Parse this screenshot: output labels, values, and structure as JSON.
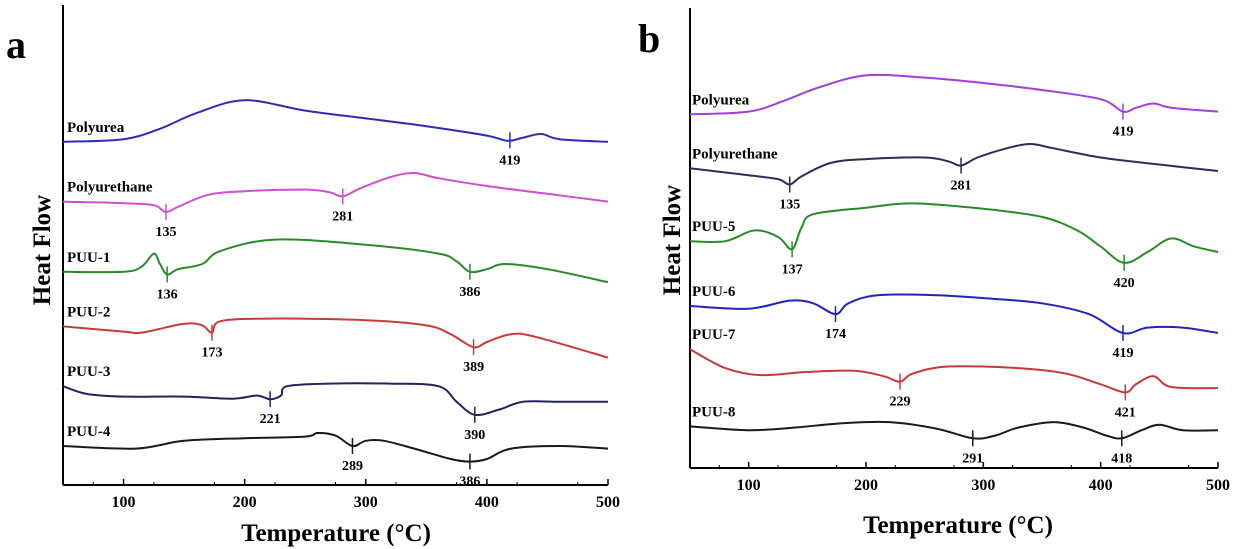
{
  "figure": {
    "panels": [
      {
        "letter": "a",
        "xlabel": "Temperature (°C)",
        "ylabel": "Heat Flow"
      },
      {
        "letter": "b",
        "xlabel": "Temperature (°C)",
        "ylabel": "Heat Flow"
      }
    ]
  },
  "colors": {
    "polyurea_a": "#2e2eb4",
    "polyurethane_a": "#d04fd0",
    "puu1": "#2a8a2a",
    "puu2": "#c83a3a",
    "puu3": "#23235e",
    "puu4": "#1a1a1a",
    "polyurea_b": "#a040d8",
    "polyurethane_b": "#2c2c5a",
    "puu5": "#2a8a2a",
    "puu6": "#2323b4",
    "puu7": "#c83a3a",
    "puu8": "#1a1a1a"
  },
  "chart_data": [
    {
      "type": "line",
      "panel": "a",
      "xlabel": "Temperature (°C)",
      "ylabel": "Heat Flow",
      "xlim": [
        50,
        500
      ],
      "xticks": [
        100,
        200,
        300,
        400,
        500
      ],
      "y_ticks_shown": false,
      "grid": false,
      "series": [
        {
          "name": "Polyurea",
          "color_key": "polyurea_a",
          "offset": 6.6,
          "points": [
            [
              50,
              0
            ],
            [
              100,
              0.05
            ],
            [
              130,
              0.25
            ],
            [
              160,
              0.55
            ],
            [
              200,
              0.8
            ],
            [
              250,
              0.6
            ],
            [
              300,
              0.45
            ],
            [
              350,
              0.3
            ],
            [
              400,
              0.12
            ],
            [
              417,
              0.02
            ],
            [
              430,
              0.08
            ],
            [
              445,
              0.15
            ],
            [
              460,
              0.05
            ],
            [
              500,
              0
            ]
          ],
          "peaks": [
            {
              "x": 419,
              "label": "419"
            }
          ]
        },
        {
          "name": "Polyurethane",
          "color_key": "polyurethane_a",
          "offset": 5.3,
          "points": [
            [
              50,
              0.15
            ],
            [
              100,
              0.12
            ],
            [
              125,
              0.08
            ],
            [
              135,
              -0.05
            ],
            [
              145,
              0.05
            ],
            [
              170,
              0.28
            ],
            [
              200,
              0.35
            ],
            [
              250,
              0.38
            ],
            [
              270,
              0.33
            ],
            [
              281,
              0.25
            ],
            [
              295,
              0.4
            ],
            [
              320,
              0.62
            ],
            [
              340,
              0.7
            ],
            [
              360,
              0.6
            ],
            [
              400,
              0.45
            ],
            [
              450,
              0.3
            ],
            [
              500,
              0.15
            ]
          ],
          "peaks": [
            {
              "x": 135,
              "label": "135"
            },
            {
              "x": 281,
              "label": "281"
            }
          ]
        },
        {
          "name": "PUU-1",
          "color_key": "puu1",
          "offset": 4.0,
          "points": [
            [
              50,
              0.1
            ],
            [
              100,
              0.1
            ],
            [
              115,
              0.2
            ],
            [
              125,
              0.45
            ],
            [
              130,
              0.25
            ],
            [
              136,
              0.05
            ],
            [
              145,
              0.15
            ],
            [
              165,
              0.25
            ],
            [
              180,
              0.5
            ],
            [
              225,
              0.72
            ],
            [
              300,
              0.62
            ],
            [
              360,
              0.45
            ],
            [
              375,
              0.3
            ],
            [
              386,
              0.1
            ],
            [
              400,
              0.15
            ],
            [
              415,
              0.25
            ],
            [
              450,
              0.15
            ],
            [
              500,
              -0.1
            ]
          ],
          "peaks": [
            {
              "x": 136,
              "label": "136"
            },
            {
              "x": 386,
              "label": "386"
            }
          ]
        },
        {
          "name": "PUU-2",
          "color_key": "puu2",
          "offset": 2.85,
          "points": [
            [
              50,
              0.2
            ],
            [
              100,
              0.1
            ],
            [
              115,
              0.08
            ],
            [
              150,
              0.25
            ],
            [
              165,
              0.22
            ],
            [
              173,
              0.08
            ],
            [
              180,
              0.3
            ],
            [
              220,
              0.35
            ],
            [
              300,
              0.32
            ],
            [
              350,
              0.22
            ],
            [
              370,
              0.05
            ],
            [
              389,
              -0.2
            ],
            [
              400,
              -0.1
            ],
            [
              420,
              0.05
            ],
            [
              440,
              0.0
            ],
            [
              500,
              -0.4
            ]
          ],
          "peaks": [
            {
              "x": 173,
              "label": "173"
            },
            {
              "x": 389,
              "label": "389"
            }
          ]
        },
        {
          "name": "PUU-3",
          "color_key": "puu3",
          "offset": 1.6,
          "points": [
            [
              50,
              0.3
            ],
            [
              70,
              0.15
            ],
            [
              100,
              0.1
            ],
            [
              150,
              0.1
            ],
            [
              190,
              0.06
            ],
            [
              210,
              0.12
            ],
            [
              221,
              0.05
            ],
            [
              230,
              0.12
            ],
            [
              235,
              0.3
            ],
            [
              270,
              0.35
            ],
            [
              320,
              0.35
            ],
            [
              360,
              0.3
            ],
            [
              375,
              0.0
            ],
            [
              390,
              -0.25
            ],
            [
              410,
              -0.15
            ],
            [
              430,
              0.0
            ],
            [
              460,
              0.0
            ],
            [
              500,
              0.0
            ]
          ],
          "peaks": [
            {
              "x": 221,
              "label": "221"
            },
            {
              "x": 390,
              "label": "390"
            }
          ]
        },
        {
          "name": "PUU-4",
          "color_key": "puu4",
          "offset": 0.55,
          "points": [
            [
              50,
              0.2
            ],
            [
              110,
              0.15
            ],
            [
              150,
              0.3
            ],
            [
              200,
              0.35
            ],
            [
              250,
              0.38
            ],
            [
              260,
              0.45
            ],
            [
              275,
              0.4
            ],
            [
              289,
              0.2
            ],
            [
              300,
              0.3
            ],
            [
              315,
              0.3
            ],
            [
              340,
              0.15
            ],
            [
              370,
              -0.05
            ],
            [
              386,
              -0.1
            ],
            [
              400,
              -0.05
            ],
            [
              420,
              0.15
            ],
            [
              460,
              0.2
            ],
            [
              500,
              0.15
            ]
          ],
          "peaks": [
            {
              "x": 289,
              "label": "289"
            },
            {
              "x": 386,
              "label": "386"
            }
          ]
        }
      ]
    },
    {
      "type": "line",
      "panel": "b",
      "xlabel": "Temperature (°C)",
      "ylabel": "Heat Flow",
      "xlim": [
        50,
        500
      ],
      "xticks": [
        100,
        200,
        300,
        400,
        500
      ],
      "y_ticks_shown": false,
      "grid": false,
      "series": [
        {
          "name": "Polyurea",
          "color_key": "polyurea_b",
          "offset": 6.55,
          "points": [
            [
              50,
              0.0
            ],
            [
              100,
              0.05
            ],
            [
              130,
              0.25
            ],
            [
              160,
              0.5
            ],
            [
              200,
              0.72
            ],
            [
              250,
              0.68
            ],
            [
              300,
              0.58
            ],
            [
              350,
              0.45
            ],
            [
              400,
              0.28
            ],
            [
              419,
              0.05
            ],
            [
              430,
              0.12
            ],
            [
              445,
              0.2
            ],
            [
              460,
              0.12
            ],
            [
              500,
              0.05
            ]
          ],
          "peaks": [
            {
              "x": 419,
              "label": "419"
            }
          ]
        },
        {
          "name": "Polyurethane",
          "color_key": "polyurethane_b",
          "offset": 5.3,
          "points": [
            [
              50,
              0.25
            ],
            [
              100,
              0.12
            ],
            [
              125,
              0.05
            ],
            [
              135,
              -0.05
            ],
            [
              145,
              0.1
            ],
            [
              170,
              0.35
            ],
            [
              200,
              0.42
            ],
            [
              250,
              0.45
            ],
            [
              270,
              0.38
            ],
            [
              281,
              0.3
            ],
            [
              295,
              0.45
            ],
            [
              320,
              0.62
            ],
            [
              340,
              0.7
            ],
            [
              360,
              0.62
            ],
            [
              400,
              0.45
            ],
            [
              450,
              0.32
            ],
            [
              500,
              0.2
            ]
          ],
          "peaks": [
            {
              "x": 135,
              "label": "135"
            },
            {
              "x": 281,
              "label": "281"
            }
          ]
        },
        {
          "name": "PUU-5",
          "color_key": "puu5",
          "offset": 4.1,
          "points": [
            [
              50,
              0.1
            ],
            [
              80,
              0.1
            ],
            [
              105,
              0.3
            ],
            [
              125,
              0.18
            ],
            [
              137,
              -0.05
            ],
            [
              145,
              0.35
            ],
            [
              155,
              0.6
            ],
            [
              200,
              0.72
            ],
            [
              240,
              0.8
            ],
            [
              300,
              0.7
            ],
            [
              350,
              0.55
            ],
            [
              380,
              0.3
            ],
            [
              400,
              0.0
            ],
            [
              420,
              -0.3
            ],
            [
              440,
              -0.1
            ],
            [
              460,
              0.15
            ],
            [
              480,
              0.0
            ],
            [
              500,
              -0.1
            ]
          ],
          "peaks": [
            {
              "x": 137,
              "label": "137"
            },
            {
              "x": 420,
              "label": "420"
            }
          ]
        },
        {
          "name": "PUU-6",
          "color_key": "puu6",
          "offset": 2.85,
          "points": [
            [
              50,
              0.15
            ],
            [
              100,
              0.1
            ],
            [
              135,
              0.25
            ],
            [
              155,
              0.2
            ],
            [
              174,
              0.0
            ],
            [
              185,
              0.2
            ],
            [
              210,
              0.35
            ],
            [
              260,
              0.35
            ],
            [
              310,
              0.28
            ],
            [
              350,
              0.2
            ],
            [
              390,
              0.0
            ],
            [
              419,
              -0.35
            ],
            [
              440,
              -0.25
            ],
            [
              470,
              -0.25
            ],
            [
              500,
              -0.35
            ]
          ],
          "peaks": [
            {
              "x": 174,
              "label": "174"
            },
            {
              "x": 419,
              "label": "419"
            }
          ]
        },
        {
          "name": "PUU-7",
          "color_key": "puu7",
          "offset": 1.6,
          "points": [
            [
              50,
              0.6
            ],
            [
              80,
              0.25
            ],
            [
              110,
              0.12
            ],
            [
              150,
              0.18
            ],
            [
              190,
              0.2
            ],
            [
              215,
              0.1
            ],
            [
              229,
              0.0
            ],
            [
              240,
              0.15
            ],
            [
              270,
              0.28
            ],
            [
              330,
              0.25
            ],
            [
              370,
              0.15
            ],
            [
              400,
              -0.05
            ],
            [
              421,
              -0.2
            ],
            [
              430,
              -0.05
            ],
            [
              445,
              0.1
            ],
            [
              460,
              -0.1
            ],
            [
              500,
              -0.12
            ]
          ],
          "peaks": [
            {
              "x": 229,
              "label": "229"
            },
            {
              "x": 421,
              "label": "421"
            }
          ]
        },
        {
          "name": "PUU-8",
          "color_key": "puu8",
          "offset": 0.55,
          "points": [
            [
              50,
              0.22
            ],
            [
              100,
              0.15
            ],
            [
              140,
              0.2
            ],
            [
              180,
              0.28
            ],
            [
              220,
              0.3
            ],
            [
              260,
              0.18
            ],
            [
              291,
              0.0
            ],
            [
              310,
              0.05
            ],
            [
              330,
              0.2
            ],
            [
              360,
              0.3
            ],
            [
              385,
              0.2
            ],
            [
              405,
              0.05
            ],
            [
              418,
              0.0
            ],
            [
              435,
              0.15
            ],
            [
              450,
              0.25
            ],
            [
              470,
              0.15
            ],
            [
              500,
              0.15
            ]
          ],
          "peaks": [
            {
              "x": 291,
              "label": "291"
            },
            {
              "x": 418,
              "label": "418"
            }
          ]
        }
      ]
    }
  ]
}
